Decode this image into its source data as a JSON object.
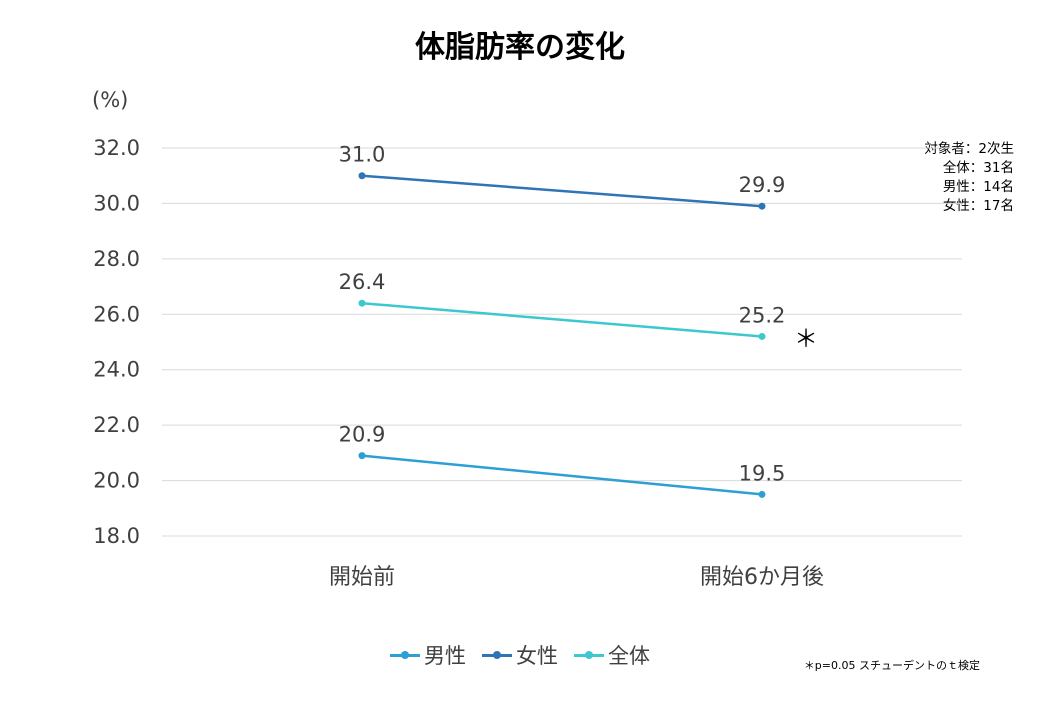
{
  "title": "体脂肪率の変化",
  "unit_label": "(%)",
  "notes": [
    "対象者：2次生",
    "全体：31名",
    "男性：14名",
    "女性：17名"
  ],
  "significance_mark": "＊",
  "footnote": "＊p=0.05 スチューデントのｔ検定",
  "chart_data": {
    "type": "line",
    "title": "体脂肪率の変化",
    "ylabel": "(%)",
    "categories": [
      "開始前",
      "開始6か月後"
    ],
    "ylim": [
      18.0,
      32.0
    ],
    "yticks": [
      "18.0",
      "20.0",
      "22.0",
      "24.0",
      "26.0",
      "28.0",
      "30.0",
      "32.0"
    ],
    "grid": true,
    "legend": "bottom",
    "series": [
      {
        "name": "男性",
        "values": [
          20.9,
          19.5
        ],
        "labels": [
          "20.9",
          "19.5"
        ],
        "color": "#2E9FD4"
      },
      {
        "name": "女性",
        "values": [
          31.0,
          29.9
        ],
        "labels": [
          "31.0",
          "29.9"
        ],
        "color": "#2E75B6"
      },
      {
        "name": "全体",
        "values": [
          26.4,
          25.2
        ],
        "labels": [
          "26.4",
          "25.2"
        ],
        "color": "#3CC8CF"
      }
    ]
  }
}
